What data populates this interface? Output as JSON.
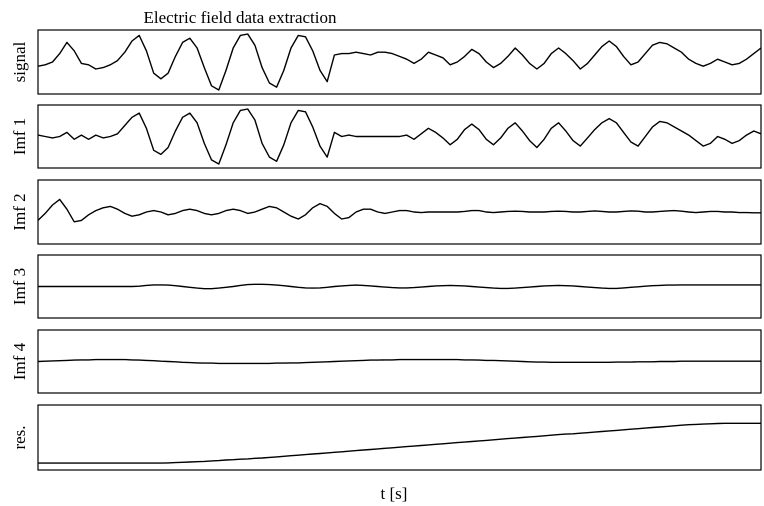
{
  "chart_data": {
    "type": "line",
    "title": "Electric field data extraction",
    "xlabel": "t [s]",
    "x_ticks": "none",
    "y_ticks": "none",
    "grid": false,
    "legend": "none",
    "x": [
      0,
      1,
      2,
      3,
      4,
      5,
      6,
      7,
      8,
      9,
      10,
      11,
      12,
      13,
      14,
      15,
      16,
      17,
      18,
      19,
      20,
      21,
      22,
      23,
      24,
      25,
      26,
      27,
      28,
      29,
      30,
      31,
      32,
      33,
      34,
      35,
      36,
      37,
      38,
      39,
      40,
      41,
      42,
      43,
      44,
      45,
      46,
      47,
      48,
      49,
      50,
      51,
      52,
      53,
      54,
      55,
      56,
      57,
      58,
      59,
      60,
      61,
      62,
      63,
      64,
      65,
      66,
      67,
      68,
      69,
      70,
      71,
      72,
      73,
      74,
      75,
      76,
      77,
      78,
      79,
      80,
      81,
      82,
      83,
      84,
      85,
      86,
      87,
      88,
      89,
      90,
      91,
      92,
      93,
      94,
      95,
      96,
      97,
      98,
      99,
      100
    ],
    "series": [
      {
        "name": "signal",
        "ylim": [
          -1,
          1
        ],
        "values": [
          -0.15,
          -0.1,
          0.0,
          0.3,
          0.7,
          0.4,
          -0.05,
          -0.1,
          -0.25,
          -0.2,
          -0.1,
          0.05,
          0.35,
          0.75,
          0.95,
          0.4,
          -0.4,
          -0.6,
          -0.4,
          0.2,
          0.7,
          0.85,
          0.5,
          -0.2,
          -0.85,
          -1.0,
          -0.3,
          0.5,
          0.95,
          1.0,
          0.6,
          -0.2,
          -0.75,
          -0.9,
          -0.3,
          0.5,
          0.95,
          0.9,
          0.4,
          -0.3,
          -0.7,
          0.25,
          0.3,
          0.3,
          0.35,
          0.3,
          0.25,
          0.35,
          0.35,
          0.3,
          0.2,
          0.1,
          -0.05,
          0.1,
          0.35,
          0.25,
          0.15,
          -0.1,
          0.0,
          0.2,
          0.45,
          0.3,
          0.0,
          -0.2,
          -0.05,
          0.2,
          0.5,
          0.25,
          -0.05,
          -0.25,
          -0.05,
          0.3,
          0.5,
          0.3,
          0.05,
          -0.25,
          -0.05,
          0.25,
          0.55,
          0.75,
          0.55,
          0.2,
          -0.1,
          0.0,
          0.3,
          0.6,
          0.7,
          0.65,
          0.5,
          0.35,
          0.1,
          -0.05,
          -0.15,
          -0.05,
          0.1,
          0.0,
          -0.1,
          -0.05,
          0.1,
          0.3,
          0.5
        ]
      },
      {
        "name": "Imf 1",
        "ylim": [
          -1,
          1
        ],
        "values": [
          0.05,
          0.0,
          -0.05,
          0.0,
          0.15,
          -0.1,
          0.05,
          -0.1,
          0.05,
          -0.05,
          0.0,
          0.1,
          0.4,
          0.7,
          0.85,
          0.3,
          -0.5,
          -0.65,
          -0.4,
          0.2,
          0.7,
          0.85,
          0.5,
          -0.25,
          -0.85,
          -1.0,
          -0.3,
          0.5,
          0.95,
          1.0,
          0.6,
          -0.25,
          -0.75,
          -0.9,
          -0.3,
          0.5,
          0.95,
          0.9,
          0.35,
          -0.35,
          -0.75,
          0.15,
          0.0,
          0.05,
          0.0,
          0.0,
          0.0,
          0.0,
          0.0,
          0.0,
          0.0,
          0.05,
          -0.1,
          0.1,
          0.3,
          0.15,
          -0.05,
          -0.3,
          -0.1,
          0.25,
          0.45,
          0.25,
          -0.1,
          -0.3,
          -0.05,
          0.3,
          0.5,
          0.2,
          -0.15,
          -0.4,
          -0.1,
          0.3,
          0.5,
          0.2,
          -0.15,
          -0.35,
          -0.05,
          0.25,
          0.5,
          0.65,
          0.5,
          0.15,
          -0.2,
          -0.35,
          0.0,
          0.35,
          0.55,
          0.5,
          0.35,
          0.2,
          0.05,
          -0.15,
          -0.35,
          -0.25,
          0.0,
          -0.1,
          -0.25,
          -0.15,
          0.05,
          0.2,
          0.1
        ]
      },
      {
        "name": "Imf 2",
        "ylim": [
          -1,
          1
        ],
        "values": [
          -0.3,
          -0.05,
          0.25,
          0.45,
          0.1,
          -0.35,
          -0.3,
          -0.1,
          0.05,
          0.15,
          0.2,
          0.1,
          -0.05,
          -0.15,
          -0.1,
          0.0,
          0.05,
          0.0,
          -0.1,
          -0.05,
          0.05,
          0.1,
          0.05,
          -0.05,
          -0.1,
          -0.05,
          0.05,
          0.1,
          0.05,
          -0.05,
          0.0,
          0.1,
          0.2,
          0.15,
          0.0,
          -0.15,
          -0.25,
          -0.1,
          0.15,
          0.3,
          0.2,
          -0.05,
          -0.25,
          -0.2,
          0.0,
          0.1,
          0.1,
          0.0,
          -0.05,
          0.0,
          0.05,
          0.05,
          0.0,
          -0.02,
          0.0,
          0.0,
          0.0,
          0.0,
          0.0,
          0.02,
          0.05,
          0.05,
          0.0,
          -0.02,
          0.0,
          0.02,
          0.03,
          0.02,
          0.0,
          0.0,
          0.0,
          0.02,
          0.03,
          0.02,
          0.0,
          0.0,
          0.02,
          0.04,
          0.02,
          0.0,
          0.0,
          0.02,
          0.04,
          0.03,
          0.0,
          0.0,
          0.02,
          0.04,
          0.05,
          0.03,
          0.0,
          -0.02,
          0.0,
          0.02,
          0.02,
          0.0,
          0.0,
          -0.02,
          -0.02,
          -0.03,
          -0.03
        ]
      },
      {
        "name": "Imf 3",
        "ylim": [
          -1,
          1
        ],
        "values": [
          0.0,
          0.0,
          0.0,
          0.0,
          0.0,
          0.0,
          0.0,
          0.0,
          0.0,
          0.0,
          0.0,
          0.0,
          0.0,
          0.0,
          0.01,
          0.04,
          0.06,
          0.06,
          0.05,
          0.03,
          0.0,
          -0.03,
          -0.06,
          -0.08,
          -0.08,
          -0.06,
          -0.03,
          0.0,
          0.04,
          0.07,
          0.08,
          0.08,
          0.07,
          0.05,
          0.03,
          0.0,
          -0.03,
          -0.05,
          -0.06,
          -0.05,
          -0.03,
          0.0,
          0.02,
          0.04,
          0.05,
          0.04,
          0.02,
          0.0,
          -0.02,
          -0.04,
          -0.05,
          -0.05,
          -0.04,
          -0.02,
          0.0,
          0.02,
          0.03,
          0.04,
          0.03,
          0.02,
          0.0,
          -0.02,
          -0.04,
          -0.06,
          -0.07,
          -0.07,
          -0.06,
          -0.04,
          -0.02,
          0.0,
          0.02,
          0.03,
          0.04,
          0.03,
          0.02,
          0.0,
          -0.02,
          -0.04,
          -0.06,
          -0.07,
          -0.07,
          -0.05,
          -0.03,
          -0.01,
          0.01,
          0.03,
          0.04,
          0.05,
          0.05,
          0.06,
          0.06,
          0.06,
          0.06,
          0.06,
          0.06,
          0.06,
          0.06,
          0.06,
          0.06,
          0.06,
          0.06
        ]
      },
      {
        "name": "Imf 4",
        "ylim": [
          -1,
          1
        ],
        "values": [
          0.0,
          0.01,
          0.02,
          0.03,
          0.04,
          0.05,
          0.06,
          0.06,
          0.07,
          0.07,
          0.07,
          0.07,
          0.07,
          0.06,
          0.05,
          0.04,
          0.03,
          0.01,
          0.0,
          -0.01,
          -0.03,
          -0.04,
          -0.05,
          -0.06,
          -0.06,
          -0.07,
          -0.07,
          -0.07,
          -0.07,
          -0.07,
          -0.07,
          -0.07,
          -0.07,
          -0.06,
          -0.06,
          -0.05,
          -0.05,
          -0.04,
          -0.03,
          -0.02,
          -0.01,
          0.0,
          0.01,
          0.02,
          0.03,
          0.04,
          0.05,
          0.05,
          0.06,
          0.06,
          0.07,
          0.07,
          0.07,
          0.07,
          0.07,
          0.07,
          0.07,
          0.07,
          0.07,
          0.06,
          0.06,
          0.05,
          0.04,
          0.04,
          0.03,
          0.02,
          0.01,
          0.0,
          -0.01,
          -0.02,
          -0.02,
          -0.03,
          -0.03,
          -0.03,
          -0.03,
          -0.03,
          -0.03,
          -0.03,
          -0.03,
          -0.03,
          -0.02,
          -0.02,
          -0.02,
          -0.01,
          -0.01,
          -0.01,
          0.0,
          0.0,
          0.0,
          0.01,
          0.01,
          0.01,
          0.01,
          0.01,
          0.01,
          0.01,
          0.01,
          0.01,
          0.01,
          0.01,
          0.01
        ]
      },
      {
        "name": "res.",
        "ylim": [
          -1,
          1
        ],
        "values": [
          -0.9,
          -0.9,
          -0.9,
          -0.9,
          -0.9,
          -0.9,
          -0.9,
          -0.9,
          -0.9,
          -0.9,
          -0.9,
          -0.9,
          -0.9,
          -0.9,
          -0.9,
          -0.9,
          -0.9,
          -0.9,
          -0.89,
          -0.88,
          -0.87,
          -0.86,
          -0.85,
          -0.84,
          -0.82,
          -0.81,
          -0.79,
          -0.78,
          -0.76,
          -0.75,
          -0.73,
          -0.72,
          -0.7,
          -0.68,
          -0.66,
          -0.64,
          -0.62,
          -0.6,
          -0.58,
          -0.56,
          -0.54,
          -0.52,
          -0.5,
          -0.48,
          -0.46,
          -0.44,
          -0.42,
          -0.4,
          -0.38,
          -0.36,
          -0.34,
          -0.32,
          -0.3,
          -0.28,
          -0.26,
          -0.24,
          -0.22,
          -0.2,
          -0.18,
          -0.16,
          -0.14,
          -0.12,
          -0.1,
          -0.08,
          -0.06,
          -0.04,
          -0.02,
          0.0,
          0.02,
          0.04,
          0.06,
          0.08,
          0.1,
          0.12,
          0.13,
          0.15,
          0.17,
          0.19,
          0.21,
          0.23,
          0.25,
          0.27,
          0.29,
          0.31,
          0.33,
          0.35,
          0.37,
          0.39,
          0.41,
          0.43,
          0.45,
          0.46,
          0.47,
          0.48,
          0.49,
          0.5,
          0.5,
          0.5,
          0.5,
          0.5,
          0.5
        ]
      }
    ]
  }
}
